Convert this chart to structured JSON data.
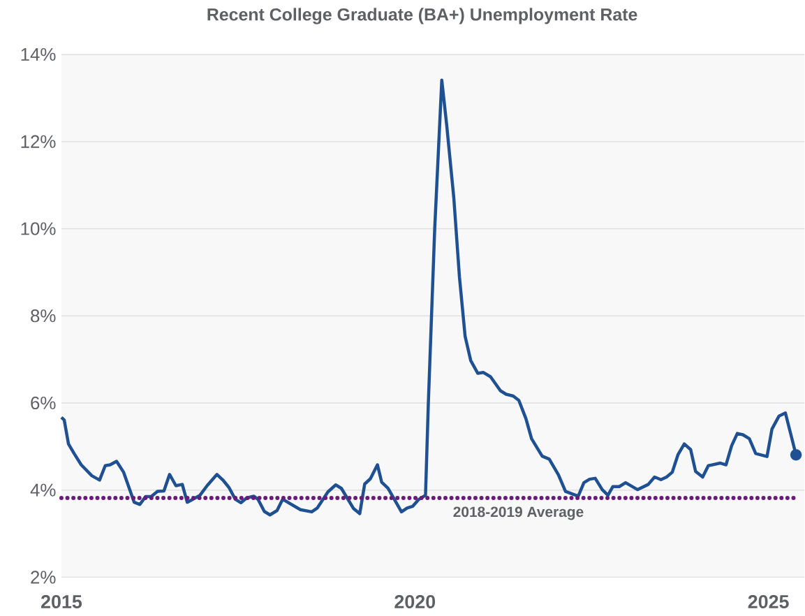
{
  "chart_data": {
    "type": "line",
    "title": "Recent College Graduate (BA+) Unemployment Rate",
    "xlim": [
      2015,
      2025.51
    ],
    "xticks": [
      2015,
      2020,
      2025
    ],
    "ylim": [
      2,
      14
    ],
    "yticks": [
      {
        "value": 2,
        "label": "2%"
      },
      {
        "value": 4,
        "label": "4%"
      },
      {
        "value": 6,
        "label": "6%"
      },
      {
        "value": 8,
        "label": "8%"
      },
      {
        "value": 10,
        "label": "10%"
      },
      {
        "value": 12,
        "label": "12%"
      },
      {
        "value": 14,
        "label": "14%"
      }
    ],
    "grid": "y",
    "line_style": "solid",
    "series": [
      {
        "color": "#1f5192",
        "marker": "none",
        "x": [
          2015.0,
          2015.04,
          2015.1,
          2015.18,
          2015.28,
          2015.43,
          2015.54,
          2015.62,
          2015.69,
          2015.78,
          2015.88,
          2016.03,
          2016.11,
          2016.19,
          2016.27,
          2016.36,
          2016.45,
          2016.53,
          2016.62,
          2016.71,
          2016.78,
          2016.96,
          2017.06,
          2017.2,
          2017.29,
          2017.37,
          2017.46,
          2017.54,
          2017.62,
          2017.72,
          2017.78,
          2017.87,
          2017.95,
          2018.05,
          2018.13,
          2018.38,
          2018.54,
          2018.62,
          2018.77,
          2018.88,
          2018.96,
          2019.13,
          2019.22,
          2019.29,
          2019.37,
          2019.47,
          2019.53,
          2019.62,
          2019.81,
          2019.89,
          2019.97,
          2020.05,
          2020.15,
          2020.19,
          2020.28,
          2020.38,
          2020.45,
          2020.55,
          2020.63,
          2020.71,
          2020.79,
          2020.89,
          2020.97,
          2021.07,
          2021.21,
          2021.29,
          2021.39,
          2021.47,
          2021.57,
          2021.65,
          2021.8,
          2021.9,
          2022.03,
          2022.13,
          2022.31,
          2022.39,
          2022.47,
          2022.55,
          2022.65,
          2022.73,
          2022.8,
          2022.89,
          2022.98,
          2023.15,
          2023.3,
          2023.39,
          2023.48,
          2023.56,
          2023.64,
          2023.72,
          2023.81,
          2023.9,
          2023.97,
          2024.07,
          2024.15,
          2024.32,
          2024.4,
          2024.48,
          2024.56,
          2024.64,
          2024.73,
          2024.82,
          2024.98,
          2025.05,
          2025.15,
          2025.24,
          2025.39
        ],
        "values": [
          5.67,
          5.61,
          5.06,
          4.84,
          4.58,
          4.33,
          4.23,
          4.56,
          4.58,
          4.66,
          4.41,
          3.72,
          3.67,
          3.85,
          3.85,
          3.97,
          3.98,
          4.36,
          4.1,
          4.13,
          3.72,
          3.88,
          4.1,
          4.36,
          4.22,
          4.06,
          3.79,
          3.71,
          3.82,
          3.86,
          3.79,
          3.51,
          3.43,
          3.53,
          3.79,
          3.55,
          3.5,
          3.59,
          3.96,
          4.12,
          4.04,
          3.58,
          3.46,
          4.14,
          4.26,
          4.58,
          4.18,
          4.04,
          3.5,
          3.59,
          3.63,
          3.78,
          3.88,
          6.0,
          10.0,
          13.41,
          12.37,
          10.71,
          8.89,
          7.53,
          6.97,
          6.68,
          6.7,
          6.6,
          6.28,
          6.2,
          6.16,
          6.06,
          5.64,
          5.18,
          4.78,
          4.71,
          4.35,
          3.97,
          3.86,
          4.17,
          4.25,
          4.27,
          4.01,
          3.88,
          4.08,
          4.08,
          4.17,
          4.01,
          4.13,
          4.3,
          4.24,
          4.3,
          4.41,
          4.81,
          5.06,
          4.93,
          4.43,
          4.3,
          4.56,
          4.62,
          4.58,
          5.02,
          5.3,
          5.27,
          5.18,
          4.84,
          4.77,
          5.4,
          5.7,
          5.77,
          4.81
        ]
      },
      {
        "type": "scatter",
        "color": "#1f5192",
        "marker": "circle",
        "x": [
          2025.39
        ],
        "values": [
          4.81
        ]
      }
    ],
    "ref_lines": [
      {
        "axis": "y",
        "value": 3.82,
        "label": "2018-2019 Average",
        "color": "#6a1b7a",
        "line_style": "dotted"
      }
    ]
  }
}
